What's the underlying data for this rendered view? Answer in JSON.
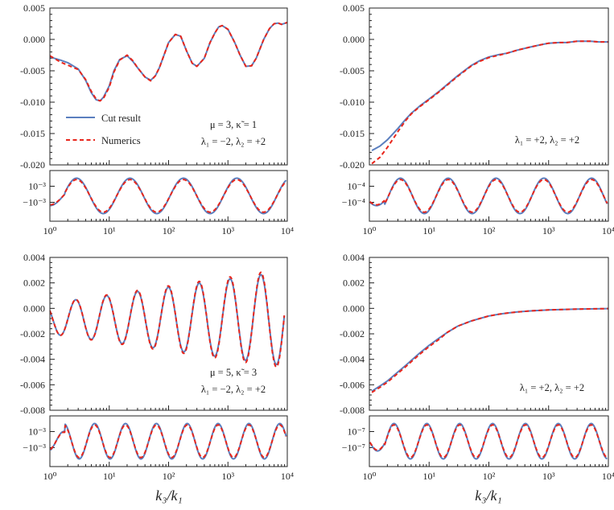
{
  "figure": {
    "xlabel": "k₃/k₁"
  },
  "chart_data": [
    {
      "type": "line",
      "panel": "top-left-main",
      "xscale": "log",
      "xlim": [
        1,
        10000
      ],
      "ylim": [
        -0.02,
        0.005
      ],
      "yticks": [
        "0.005",
        "0.000",
        "-0.005",
        "-0.010",
        "-0.015",
        "-0.020"
      ],
      "legend": [
        "Cut result",
        "Numerics"
      ],
      "legend_position": "bottom-left",
      "annotation": [
        "μ = 3, κ̃ = 1",
        "λ₁ = −2, λ₂ = +2"
      ],
      "series": [
        {
          "name": "Cut result",
          "x": [
            1,
            1.5,
            2,
            3,
            4,
            5,
            6,
            7,
            8,
            10,
            12,
            15,
            20,
            25,
            30,
            40,
            50,
            60,
            70,
            80,
            100,
            130,
            160,
            200,
            250,
            300,
            400,
            500,
            600,
            700,
            800,
            1000,
            1300,
            1600,
            2000,
            2500,
            3000,
            4000,
            5000,
            6000,
            7000,
            8000,
            10000
          ],
          "y": [
            -0.0028,
            -0.0033,
            -0.0037,
            -0.0047,
            -0.0065,
            -0.0085,
            -0.0096,
            -0.0098,
            -0.0092,
            -0.0074,
            -0.005,
            -0.0032,
            -0.0026,
            -0.0035,
            -0.0045,
            -0.006,
            -0.0065,
            -0.0058,
            -0.0045,
            -0.003,
            -0.0005,
            0.0008,
            0.0005,
            -0.0018,
            -0.0038,
            -0.0043,
            -0.003,
            -0.0005,
            0.001,
            0.002,
            0.0022,
            0.0016,
            -0.0005,
            -0.0025,
            -0.0043,
            -0.0042,
            -0.003,
            0.0,
            0.0017,
            0.0025,
            0.0026,
            0.0024,
            0.0027
          ]
        },
        {
          "name": "Numerics",
          "x": [
            1,
            1.5,
            2,
            3,
            4,
            5,
            6,
            7,
            8,
            10,
            12,
            15,
            20,
            25,
            30,
            40,
            50,
            60,
            70,
            80,
            100,
            130,
            160,
            200,
            250,
            300,
            400,
            500,
            600,
            700,
            800,
            1000,
            1300,
            1600,
            2000,
            2500,
            3000,
            4000,
            5000,
            6000,
            7000,
            8000,
            10000
          ],
          "y": [
            -0.0026,
            -0.0036,
            -0.0041,
            -0.0048,
            -0.0064,
            -0.0083,
            -0.0095,
            -0.0098,
            -0.0094,
            -0.0076,
            -0.0052,
            -0.0033,
            -0.0025,
            -0.0034,
            -0.0045,
            -0.006,
            -0.0066,
            -0.0058,
            -0.0045,
            -0.003,
            -0.0005,
            0.0008,
            0.0005,
            -0.0018,
            -0.0038,
            -0.0043,
            -0.003,
            -0.0005,
            0.001,
            0.002,
            0.0022,
            0.0016,
            -0.0005,
            -0.0025,
            -0.0043,
            -0.0042,
            -0.003,
            0.0,
            0.0017,
            0.0025,
            0.0026,
            0.0024,
            0.0027
          ]
        }
      ]
    },
    {
      "type": "line",
      "panel": "top-left-residual",
      "xscale": "log",
      "xlim": [
        1,
        10000
      ],
      "xticks": [
        "10⁰",
        "10¹",
        "10²",
        "10³",
        "10⁴"
      ],
      "yticks": [
        "10⁻³",
        "−10⁻³"
      ],
      "series": [
        {
          "name": "Cut result",
          "shape": "oscillation",
          "period_decades": 0.9,
          "phase": 0.25,
          "amplitude": 0.001
        },
        {
          "name": "Numerics",
          "shape": "oscillation",
          "period_decades": 0.9,
          "phase": 0.25,
          "amplitude": 0.001
        }
      ]
    },
    {
      "type": "line",
      "panel": "top-right-main",
      "xscale": "log",
      "xlim": [
        1,
        10000
      ],
      "ylim": [
        -0.02,
        0.005
      ],
      "yticks": [
        "0.005",
        "0.000",
        "-0.005",
        "-0.010",
        "-0.015",
        "-0.020"
      ],
      "annotation": [
        "λ₁ = +2, λ₂ = +2"
      ],
      "series": [
        {
          "name": "Cut result",
          "x": [
            1.1,
            1.5,
            2,
            3,
            4,
            5,
            7,
            10,
            15,
            20,
            30,
            50,
            70,
            100,
            150,
            200,
            300,
            500,
            700,
            1000,
            1500,
            2000,
            3000,
            5000,
            7000,
            10000
          ],
          "y": [
            -0.0177,
            -0.017,
            -0.016,
            -0.0142,
            -0.0128,
            -0.0118,
            -0.0106,
            -0.0095,
            -0.0082,
            -0.0072,
            -0.0058,
            -0.0042,
            -0.0034,
            -0.0028,
            -0.0024,
            -0.0022,
            -0.0017,
            -0.0012,
            -0.0009,
            -0.0006,
            -0.0005,
            -0.0005,
            -0.0003,
            -0.0003,
            -0.0004,
            -0.0004
          ]
        },
        {
          "name": "Numerics",
          "x": [
            1.1,
            1.5,
            2,
            3,
            4,
            5,
            7,
            10,
            15,
            20,
            30,
            50,
            70,
            100,
            150,
            200,
            300,
            500,
            700,
            1000,
            1500,
            2000,
            3000,
            5000,
            7000,
            10000
          ],
          "y": [
            -0.0198,
            -0.0188,
            -0.0172,
            -0.0147,
            -0.013,
            -0.0119,
            -0.0107,
            -0.0096,
            -0.0083,
            -0.0073,
            -0.0059,
            -0.0043,
            -0.0035,
            -0.0029,
            -0.0025,
            -0.0022,
            -0.0017,
            -0.0012,
            -0.0009,
            -0.0006,
            -0.0005,
            -0.0005,
            -0.0003,
            -0.0003,
            -0.0004,
            -0.0004
          ]
        }
      ]
    },
    {
      "type": "line",
      "panel": "top-right-residual",
      "xscale": "log",
      "xlim": [
        1,
        10000
      ],
      "xticks": [
        "10⁰",
        "10¹",
        "10²",
        "10³",
        "10⁴"
      ],
      "yticks": [
        "10⁻⁴",
        "−10⁻⁴"
      ],
      "series": [
        {
          "name": "Cut result",
          "shape": "oscillation",
          "period_decades": 0.8,
          "phase": 0.1,
          "amplitude": 0.0001
        },
        {
          "name": "Numerics",
          "shape": "oscillation",
          "period_decades": 0.8,
          "phase": 0.1,
          "amplitude": 0.0001
        }
      ]
    },
    {
      "type": "line",
      "panel": "bottom-left-main",
      "xscale": "log",
      "xlim": [
        1,
        10000
      ],
      "ylim": [
        -0.008,
        0.004
      ],
      "yticks": [
        "0.004",
        "0.002",
        "0.000",
        "-0.002",
        "-0.004",
        "-0.006",
        "-0.008"
      ],
      "annotation": [
        "μ = 5, κ̃ = 3",
        "λ₁ = −2, λ₂ = +2"
      ],
      "series": [
        {
          "name": "Cut result",
          "shape": "growing-oscillation",
          "period_decades": 0.52,
          "start_amplitude": 0.0012,
          "end_amplitude": 0.0037,
          "offset": -0.0008
        },
        {
          "name": "Numerics",
          "shape": "growing-oscillation",
          "period_decades": 0.52,
          "start_amplitude": 0.0012,
          "end_amplitude": 0.0039,
          "offset": -0.0008
        }
      ]
    },
    {
      "type": "line",
      "panel": "bottom-left-residual",
      "xscale": "log",
      "xlim": [
        1,
        10000
      ],
      "xticks": [
        "10⁰",
        "10¹",
        "10²",
        "10³",
        "10⁴"
      ],
      "yticks": [
        "10⁻³",
        "−10⁻³"
      ],
      "series": [
        {
          "name": "Cut result",
          "shape": "oscillation",
          "period_decades": 0.52,
          "phase": 0.3,
          "amplitude": 0.001
        },
        {
          "name": "Numerics",
          "shape": "oscillation",
          "period_decades": 0.52,
          "phase": 0.3,
          "amplitude": 0.001
        }
      ]
    },
    {
      "type": "line",
      "panel": "bottom-right-main",
      "xscale": "log",
      "xlim": [
        1,
        10000
      ],
      "ylim": [
        -0.008,
        0.004
      ],
      "yticks": [
        "0.004",
        "0.002",
        "0.000",
        "-0.002",
        "-0.004",
        "-0.006",
        "-0.008"
      ],
      "annotation": [
        "λ₁ = +2, λ₂ = +2"
      ],
      "series": [
        {
          "name": "Cut result",
          "x": [
            1.1,
            1.5,
            2,
            3,
            4,
            5,
            7,
            10,
            15,
            20,
            30,
            50,
            70,
            100,
            150,
            200,
            300,
            500,
            700,
            1000,
            2000,
            3000,
            5000,
            10000
          ],
          "y": [
            -0.0065,
            -0.0061,
            -0.0057,
            -0.005,
            -0.0045,
            -0.0041,
            -0.0035,
            -0.0029,
            -0.0023,
            -0.0019,
            -0.0014,
            -0.001,
            -0.0008,
            -0.0006,
            -0.00045,
            -0.00037,
            -0.00028,
            -0.0002,
            -0.00016,
            -0.00012,
            -8e-05,
            -6e-05,
            -4e-05,
            -2e-05
          ]
        },
        {
          "name": "Numerics",
          "x": [
            1.1,
            1.5,
            2,
            3,
            4,
            5,
            7,
            10,
            15,
            20,
            30,
            50,
            70,
            100,
            150,
            200,
            300,
            500,
            700,
            1000,
            2000,
            3000,
            5000,
            10000
          ],
          "y": [
            -0.0066,
            -0.0062,
            -0.0058,
            -0.0051,
            -0.0046,
            -0.0042,
            -0.0036,
            -0.003,
            -0.0024,
            -0.0019,
            -0.0014,
            -0.001,
            -0.0008,
            -0.0006,
            -0.00045,
            -0.00037,
            -0.00028,
            -0.0002,
            -0.00016,
            -0.00012,
            -8e-05,
            -6e-05,
            -4e-05,
            -2e-05
          ]
        }
      ]
    },
    {
      "type": "line",
      "panel": "bottom-right-residual",
      "xscale": "log",
      "xlim": [
        1,
        10000
      ],
      "xticks": [
        "10⁰",
        "10¹",
        "10²",
        "10³",
        "10⁴"
      ],
      "yticks": [
        "10⁻⁷",
        "−10⁻⁷"
      ],
      "series": [
        {
          "name": "Cut result",
          "shape": "oscillation",
          "period_decades": 0.55,
          "phase": 0.0,
          "amplitude": 1e-07
        },
        {
          "name": "Numerics",
          "shape": "oscillation",
          "period_decades": 0.55,
          "phase": 0.0,
          "amplitude": 1e-07
        }
      ]
    }
  ]
}
